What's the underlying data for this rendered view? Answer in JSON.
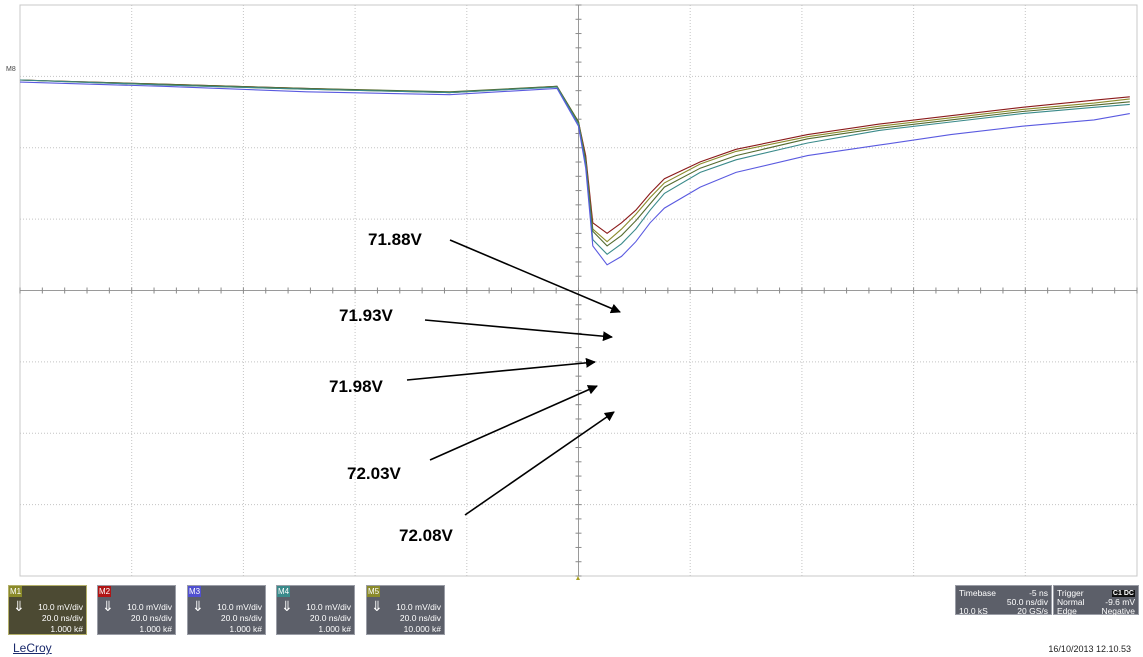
{
  "chart_data": {
    "type": "line",
    "xlabel": "",
    "ylabel": "",
    "grid": true,
    "series": [
      {
        "color": "#8b1a1a",
        "points": [
          [
            0,
            0.0
          ],
          [
            20,
            -0.1
          ],
          [
            40,
            -0.2
          ],
          [
            60,
            -0.3
          ],
          [
            75,
            -0.15
          ],
          [
            78,
            -1.0
          ],
          [
            79,
            -1.8
          ],
          [
            80,
            -3.4
          ],
          [
            82,
            -3.65
          ],
          [
            84,
            -3.4
          ],
          [
            86,
            -3.1
          ],
          [
            88,
            -2.7
          ],
          [
            90,
            -2.35
          ],
          [
            95,
            -1.95
          ],
          [
            100,
            -1.65
          ],
          [
            110,
            -1.3
          ],
          [
            120,
            -1.05
          ],
          [
            130,
            -0.85
          ],
          [
            140,
            -0.65
          ],
          [
            150,
            -0.48
          ],
          [
            155,
            -0.4
          ]
        ]
      },
      {
        "color": "#8a8a2a",
        "points": [
          [
            0,
            0.0
          ],
          [
            20,
            -0.12
          ],
          [
            40,
            -0.22
          ],
          [
            60,
            -0.3
          ],
          [
            75,
            -0.16
          ],
          [
            78,
            -1.0
          ],
          [
            79,
            -1.9
          ],
          [
            80,
            -3.55
          ],
          [
            82,
            -3.85
          ],
          [
            84,
            -3.55
          ],
          [
            86,
            -3.2
          ],
          [
            88,
            -2.8
          ],
          [
            90,
            -2.45
          ],
          [
            95,
            -2.0
          ],
          [
            100,
            -1.7
          ],
          [
            110,
            -1.35
          ],
          [
            120,
            -1.1
          ],
          [
            130,
            -0.9
          ],
          [
            140,
            -0.7
          ],
          [
            150,
            -0.55
          ],
          [
            155,
            -0.45
          ]
        ]
      },
      {
        "color": "#556b2f",
        "points": [
          [
            0,
            0.0
          ],
          [
            20,
            -0.1
          ],
          [
            40,
            -0.2
          ],
          [
            60,
            -0.28
          ],
          [
            75,
            -0.15
          ],
          [
            78,
            -1.0
          ],
          [
            79,
            -1.9
          ],
          [
            80,
            -3.6
          ],
          [
            82,
            -3.95
          ],
          [
            84,
            -3.7
          ],
          [
            86,
            -3.35
          ],
          [
            88,
            -2.95
          ],
          [
            90,
            -2.55
          ],
          [
            95,
            -2.1
          ],
          [
            100,
            -1.8
          ],
          [
            110,
            -1.4
          ],
          [
            120,
            -1.15
          ],
          [
            130,
            -0.95
          ],
          [
            140,
            -0.75
          ],
          [
            150,
            -0.6
          ],
          [
            155,
            -0.52
          ]
        ]
      },
      {
        "color": "#3a8a8a",
        "points": [
          [
            0,
            0.0
          ],
          [
            20,
            -0.12
          ],
          [
            40,
            -0.22
          ],
          [
            60,
            -0.3
          ],
          [
            75,
            -0.17
          ],
          [
            78,
            -1.05
          ],
          [
            79,
            -2.0
          ],
          [
            80,
            -3.8
          ],
          [
            82,
            -4.15
          ],
          [
            84,
            -3.9
          ],
          [
            86,
            -3.55
          ],
          [
            88,
            -3.1
          ],
          [
            90,
            -2.7
          ],
          [
            95,
            -2.2
          ],
          [
            100,
            -1.9
          ],
          [
            110,
            -1.5
          ],
          [
            120,
            -1.2
          ],
          [
            130,
            -1.0
          ],
          [
            140,
            -0.8
          ],
          [
            150,
            -0.65
          ],
          [
            155,
            -0.58
          ]
        ]
      },
      {
        "color": "#5a5ae0",
        "points": [
          [
            0,
            -0.05
          ],
          [
            20,
            -0.15
          ],
          [
            40,
            -0.28
          ],
          [
            60,
            -0.35
          ],
          [
            75,
            -0.2
          ],
          [
            78,
            -1.1
          ],
          [
            79,
            -2.1
          ],
          [
            80,
            -3.95
          ],
          [
            82,
            -4.4
          ],
          [
            84,
            -4.2
          ],
          [
            86,
            -3.85
          ],
          [
            88,
            -3.4
          ],
          [
            90,
            -3.05
          ],
          [
            95,
            -2.55
          ],
          [
            100,
            -2.2
          ],
          [
            110,
            -1.8
          ],
          [
            120,
            -1.55
          ],
          [
            130,
            -1.3
          ],
          [
            140,
            -1.1
          ],
          [
            150,
            -0.95
          ],
          [
            155,
            -0.8
          ]
        ]
      }
    ],
    "annotations": [
      "71.88V",
      "71.93V",
      "71.98V",
      "72.03V",
      "72.08V"
    ],
    "ylim": [
      -8,
      0
    ]
  },
  "marker_label": "M8",
  "channels": [
    {
      "tag": "M1",
      "tag_color": "#8a8a2a",
      "arrow": "⇓",
      "vdiv": "10.0 mV/div",
      "tdiv": "20.0 ns/div",
      "count": "1.000 k#",
      "selected": true
    },
    {
      "tag": "M2",
      "tag_color": "#b01515",
      "arrow": "⇓",
      "vdiv": "10.0 mV/div",
      "tdiv": "20.0 ns/div",
      "count": "1.000 k#",
      "selected": false
    },
    {
      "tag": "M3",
      "tag_color": "#5050d0",
      "arrow": "⇓",
      "vdiv": "10.0 mV/div",
      "tdiv": "20.0 ns/div",
      "count": "1.000 k#",
      "selected": false
    },
    {
      "tag": "M4",
      "tag_color": "#3a8a8a",
      "arrow": "⇓",
      "vdiv": "10.0 mV/div",
      "tdiv": "20.0 ns/div",
      "count": "1.000 k#",
      "selected": false
    },
    {
      "tag": "M5",
      "tag_color": "#8a8a2a",
      "arrow": "⇓",
      "vdiv": "10.0 mV/div",
      "tdiv": "20.0 ns/div",
      "count": "10.000 k#",
      "selected": false
    }
  ],
  "timebase": {
    "label": "Timebase",
    "offset": "-5 ns",
    "tdiv": "50.0 ns/div",
    "samples": "10.0 kS",
    "rate": "20 GS/s"
  },
  "trigger": {
    "label": "Trigger",
    "source": "C1",
    "coupling": "DC",
    "mode": "Normal",
    "level": "-9.6 mV",
    "type": "Edge",
    "slope": "Negative"
  },
  "brand": "LeCroy",
  "datetime": "16/10/2013 12.10.53",
  "colors": {
    "grid_minor": "#b8b8b8",
    "panel_bg": "#5c5f69",
    "brand": "#1a2a6c"
  }
}
